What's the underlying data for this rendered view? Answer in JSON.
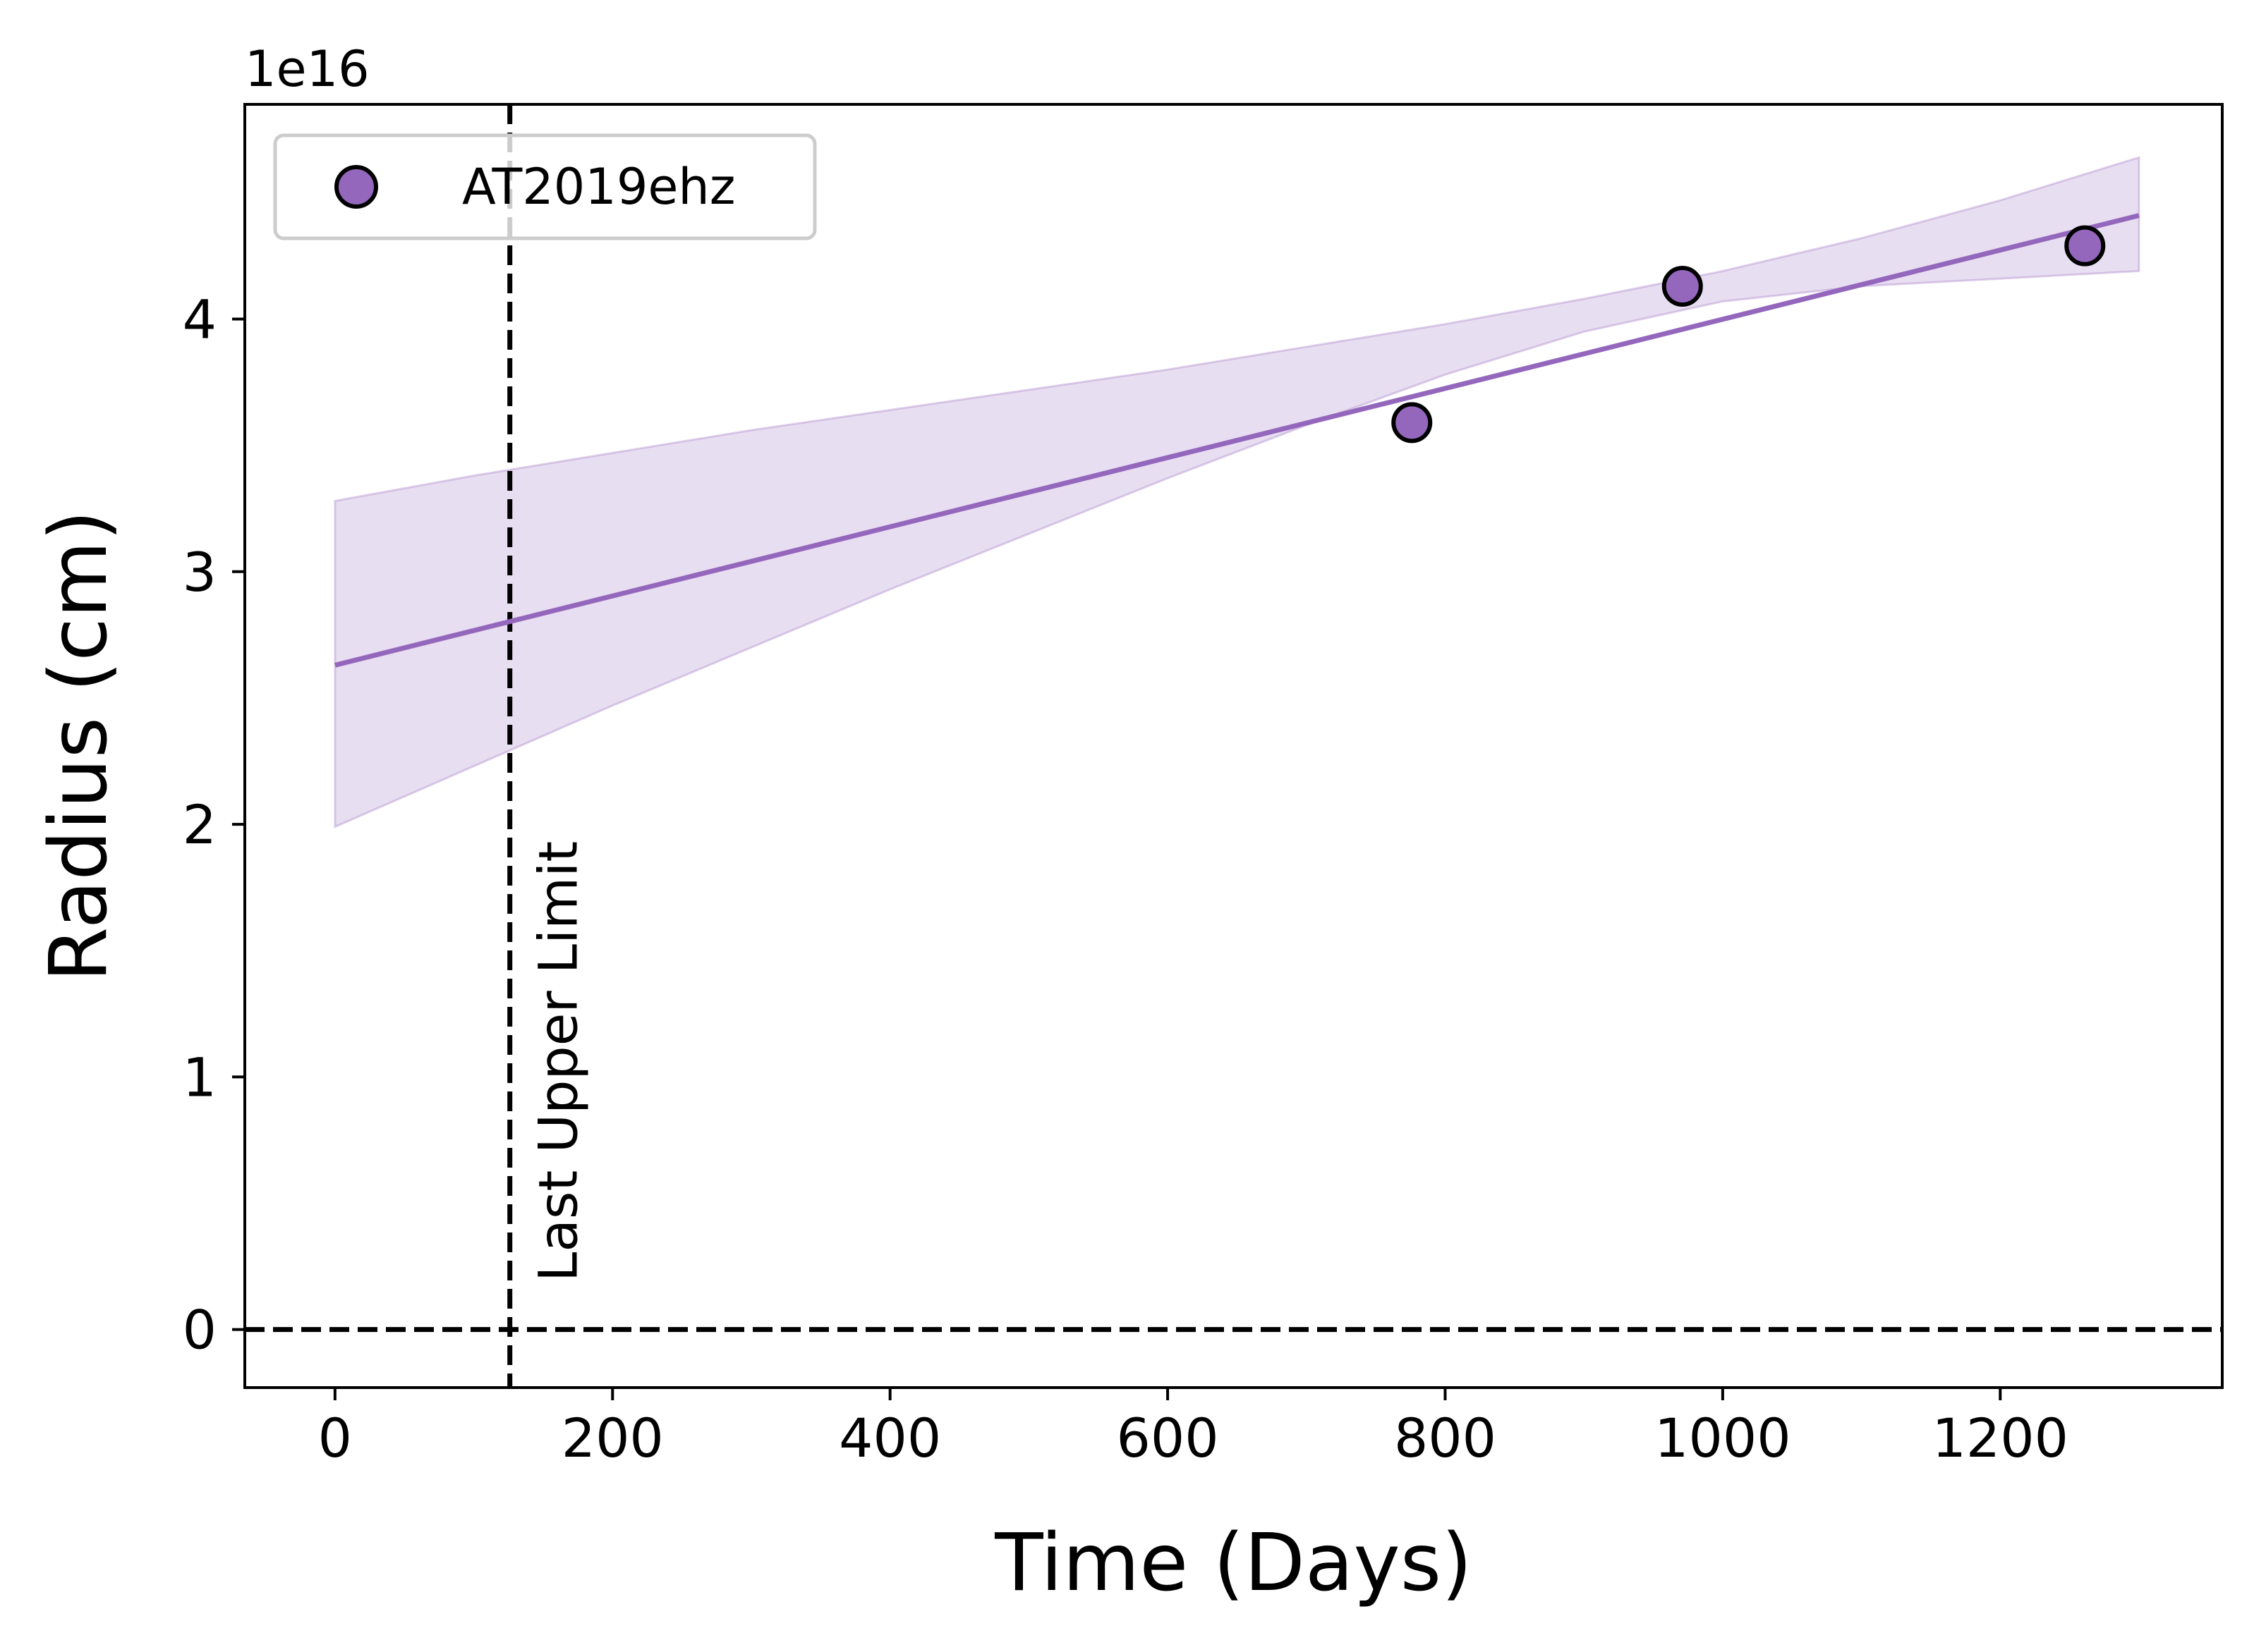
{
  "chart_data": {
    "type": "scatter",
    "title": "",
    "xlabel": "Time (Days)",
    "ylabel": "Radius (cm)",
    "y_offset_label": "1e16",
    "xlim": [
      -65,
      1360
    ],
    "ylim": [
      -0.23,
      4.85
    ],
    "xticks": [
      0,
      200,
      400,
      600,
      800,
      1000,
      1200
    ],
    "xtick_labels": [
      "0",
      "200",
      "400",
      "600",
      "800",
      "1000",
      "1200"
    ],
    "yticks": [
      0,
      1,
      2,
      3,
      4
    ],
    "ytick_labels": [
      "0",
      "1",
      "2",
      "3",
      "4"
    ],
    "grid": false,
    "legend_position": "upper-left",
    "series": [
      {
        "name": "AT2019ehz",
        "color": "#9467bd",
        "marker": "circle",
        "x": [
          776,
          971,
          1261
        ],
        "y": [
          3.59,
          4.13,
          4.29
        ]
      }
    ],
    "fit_line": {
      "color": "#9467bd",
      "x": [
        0,
        1300
      ],
      "y": [
        2.63,
        4.41
      ]
    },
    "confidence_band": {
      "color": "#9467bd",
      "opacity": 0.22,
      "x": [
        0,
        100,
        200,
        300,
        400,
        500,
        600,
        700,
        800,
        900,
        1000,
        1100,
        1200,
        1300
      ],
      "upper": [
        3.28,
        3.38,
        3.47,
        3.56,
        3.64,
        3.72,
        3.8,
        3.89,
        3.98,
        4.08,
        4.19,
        4.32,
        4.47,
        4.64
      ],
      "lower": [
        1.99,
        2.23,
        2.47,
        2.7,
        2.93,
        3.15,
        3.37,
        3.58,
        3.78,
        3.95,
        4.07,
        4.13,
        4.16,
        4.19
      ]
    },
    "annotations": [
      {
        "type": "vline",
        "x": 126,
        "style": "dashed",
        "color": "#000000",
        "label": "Last Upper Limit"
      },
      {
        "type": "hline",
        "y": 0,
        "style": "dashed",
        "color": "#000000"
      }
    ]
  }
}
